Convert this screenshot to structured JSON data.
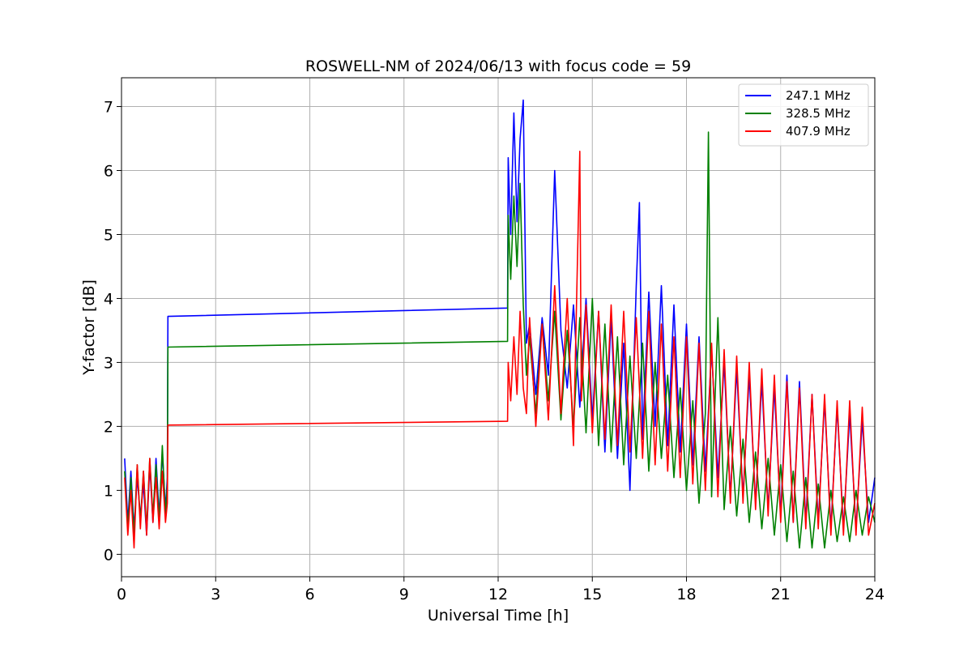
{
  "chart_data": {
    "type": "line",
    "title": "ROSWELL-NM of 2024/06/13 with focus code = 59",
    "xlabel": "Universal Time [h]",
    "ylabel": "Y-factor [dB]",
    "xlim": [
      0,
      24
    ],
    "ylim": [
      -0.35,
      7.45
    ],
    "xticks": [
      0,
      3,
      6,
      9,
      12,
      15,
      18,
      21,
      24
    ],
    "yticks": [
      0,
      1,
      2,
      3,
      4,
      5,
      6,
      7
    ],
    "grid": true,
    "legend_position": "top-right",
    "series": [
      {
        "name": "247.1 MHz",
        "color": "#0000ff",
        "x": [
          0.1,
          0.2,
          0.3,
          0.4,
          0.5,
          0.6,
          0.7,
          0.8,
          0.9,
          1.0,
          1.1,
          1.2,
          1.3,
          1.4,
          1.46,
          1.48,
          12.3,
          12.32,
          12.4,
          12.5,
          12.6,
          12.7,
          12.8,
          12.9,
          13.0,
          13.2,
          13.4,
          13.6,
          13.8,
          13.85,
          14.0,
          14.2,
          14.4,
          14.6,
          14.8,
          15.0,
          15.2,
          15.4,
          15.6,
          15.8,
          16.0,
          16.2,
          16.4,
          16.5,
          16.6,
          16.8,
          17.0,
          17.2,
          17.4,
          17.6,
          17.8,
          18.0,
          18.2,
          18.4,
          18.6,
          18.8,
          19.0,
          19.2,
          19.4,
          19.6,
          19.8,
          20.0,
          20.2,
          20.4,
          20.6,
          20.8,
          21.0,
          21.2,
          21.4,
          21.6,
          21.8,
          22.0,
          22.2,
          22.4,
          22.6,
          22.8,
          23.0,
          23.2,
          23.4,
          23.6,
          23.8,
          24.0
        ],
        "y": [
          1.5,
          0.5,
          1.3,
          0.4,
          1.2,
          0.6,
          1.1,
          0.3,
          1.4,
          0.5,
          1.5,
          0.6,
          1.6,
          0.7,
          1.2,
          3.72,
          3.85,
          6.2,
          5.0,
          6.9,
          5.2,
          6.5,
          7.1,
          3.3,
          3.6,
          2.5,
          3.7,
          2.8,
          6.0,
          5.4,
          3.5,
          2.6,
          3.9,
          2.3,
          4.0,
          2.1,
          3.8,
          1.6,
          3.7,
          1.5,
          3.3,
          1.0,
          4.2,
          5.5,
          1.8,
          4.1,
          2.0,
          4.2,
          1.7,
          3.9,
          1.6,
          3.6,
          1.4,
          3.4,
          1.3,
          3.2,
          1.2,
          3.0,
          0.9,
          2.9,
          0.9,
          2.8,
          0.8,
          2.7,
          0.7,
          2.6,
          0.6,
          2.8,
          0.5,
          2.7,
          0.5,
          2.5,
          0.5,
          2.4,
          0.4,
          2.3,
          0.4,
          2.2,
          0.4,
          2.1,
          0.5,
          1.2
        ]
      },
      {
        "name": "328.5 MHz",
        "color": "#008000",
        "x": [
          0.1,
          0.2,
          0.3,
          0.4,
          0.5,
          0.6,
          0.7,
          0.8,
          0.9,
          1.0,
          1.1,
          1.2,
          1.3,
          1.4,
          1.46,
          1.48,
          12.3,
          12.32,
          12.4,
          12.5,
          12.6,
          12.7,
          12.8,
          12.9,
          13.0,
          13.2,
          13.4,
          13.6,
          13.8,
          14.0,
          14.2,
          14.4,
          14.6,
          14.8,
          15.0,
          15.2,
          15.4,
          15.6,
          15.8,
          16.0,
          16.2,
          16.4,
          16.6,
          16.8,
          17.0,
          17.2,
          17.4,
          17.6,
          17.8,
          18.0,
          18.2,
          18.4,
          18.6,
          18.7,
          18.8,
          19.0,
          19.2,
          19.4,
          19.6,
          19.8,
          20.0,
          20.2,
          20.4,
          20.6,
          20.8,
          21.0,
          21.2,
          21.4,
          21.6,
          21.8,
          22.0,
          22.2,
          22.4,
          22.6,
          22.8,
          23.0,
          23.2,
          23.4,
          23.6,
          23.8,
          24.0
        ],
        "y": [
          1.3,
          0.4,
          1.2,
          0.3,
          1.4,
          0.5,
          1.3,
          0.4,
          1.5,
          0.6,
          1.4,
          0.5,
          1.7,
          0.6,
          1.1,
          3.24,
          3.33,
          5.3,
          4.3,
          5.6,
          4.5,
          5.8,
          3.9,
          2.8,
          3.4,
          2.2,
          3.6,
          2.4,
          3.8,
          2.1,
          3.5,
          2.0,
          3.7,
          1.9,
          4.0,
          1.7,
          3.6,
          1.6,
          3.4,
          1.4,
          3.1,
          1.5,
          3.3,
          1.3,
          3.0,
          1.5,
          2.8,
          1.2,
          2.6,
          1.0,
          2.4,
          0.8,
          2.2,
          6.6,
          0.9,
          3.7,
          0.7,
          2.0,
          0.6,
          1.8,
          0.5,
          1.6,
          0.4,
          1.5,
          0.3,
          1.4,
          0.2,
          1.3,
          0.1,
          1.2,
          0.1,
          1.1,
          0.1,
          1.0,
          0.2,
          0.9,
          0.2,
          1.0,
          0.3,
          0.9,
          0.5
        ]
      },
      {
        "name": "407.9 MHz",
        "color": "#ff0000",
        "x": [
          0.1,
          0.2,
          0.3,
          0.4,
          0.5,
          0.6,
          0.7,
          0.8,
          0.9,
          1.0,
          1.1,
          1.2,
          1.3,
          1.4,
          1.46,
          1.48,
          12.3,
          12.32,
          12.4,
          12.5,
          12.6,
          12.7,
          12.8,
          12.9,
          13.0,
          13.2,
          13.4,
          13.6,
          13.8,
          14.0,
          14.2,
          14.4,
          14.6,
          14.65,
          14.8,
          15.0,
          15.2,
          15.4,
          15.6,
          15.8,
          16.0,
          16.2,
          16.4,
          16.6,
          16.8,
          17.0,
          17.2,
          17.4,
          17.6,
          17.8,
          18.0,
          18.2,
          18.4,
          18.6,
          18.8,
          19.0,
          19.2,
          19.4,
          19.6,
          19.8,
          20.0,
          20.2,
          20.4,
          20.6,
          20.8,
          21.0,
          21.2,
          21.4,
          21.6,
          21.8,
          22.0,
          22.2,
          22.4,
          22.6,
          22.8,
          23.0,
          23.2,
          23.4,
          23.6,
          23.8,
          24.0
        ],
        "y": [
          1.2,
          0.3,
          1.0,
          0.1,
          1.4,
          0.4,
          1.3,
          0.3,
          1.5,
          0.5,
          1.2,
          0.4,
          1.3,
          0.5,
          0.8,
          2.02,
          2.08,
          3.0,
          2.4,
          3.4,
          2.5,
          3.8,
          2.6,
          2.2,
          3.7,
          2.0,
          3.6,
          2.1,
          4.2,
          2.2,
          4.0,
          1.7,
          6.3,
          2.4,
          3.9,
          1.9,
          3.8,
          1.8,
          3.9,
          1.7,
          3.8,
          1.6,
          3.7,
          1.5,
          3.8,
          1.4,
          3.6,
          1.3,
          3.4,
          1.2,
          3.4,
          1.1,
          3.3,
          1.0,
          3.3,
          0.9,
          3.2,
          0.8,
          3.1,
          0.8,
          3.0,
          0.7,
          2.9,
          0.6,
          2.8,
          0.5,
          2.7,
          0.5,
          2.6,
          0.4,
          2.5,
          0.4,
          2.5,
          0.3,
          2.4,
          0.3,
          2.4,
          0.3,
          2.3,
          0.3,
          0.8
        ]
      }
    ]
  }
}
